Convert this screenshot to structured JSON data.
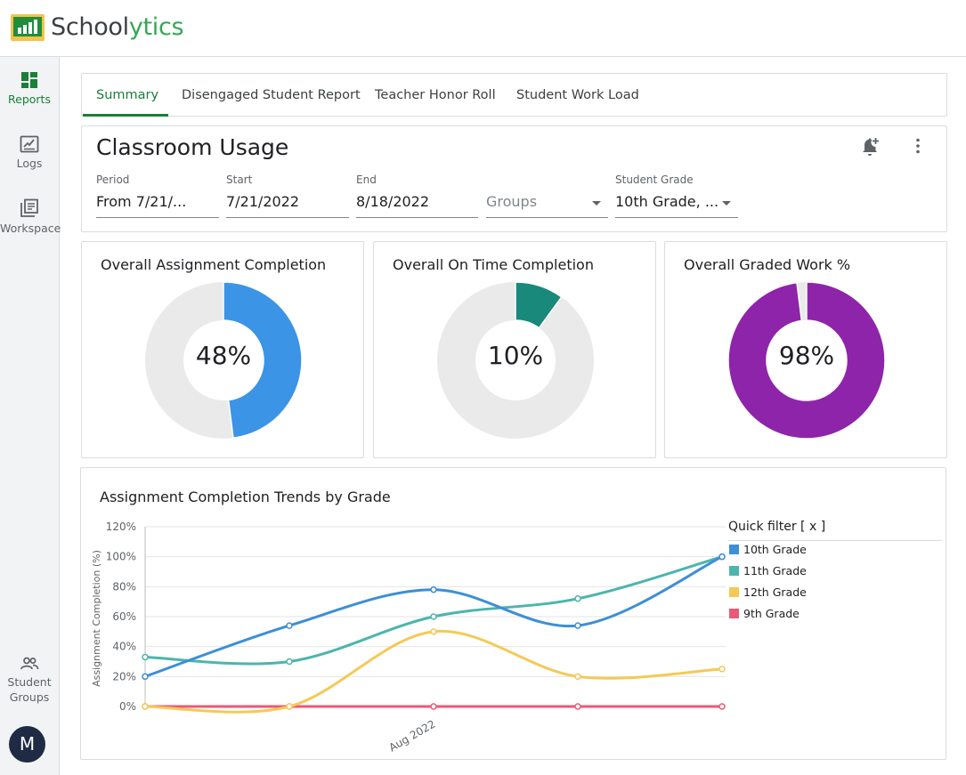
{
  "app": {
    "brand_main": "School",
    "brand_accent": "ytics"
  },
  "sidebar": {
    "items": [
      {
        "label": "Reports",
        "icon": "dashboard-icon"
      },
      {
        "label": "Logs",
        "icon": "edit-note-icon"
      },
      {
        "label": "Workspace",
        "icon": "library-books-icon"
      }
    ],
    "groups_line1": "Student",
    "groups_line2": "Groups",
    "avatar_initial": "M"
  },
  "tabs": [
    {
      "label": "Summary",
      "active": true
    },
    {
      "label": "Disengaged Student Report"
    },
    {
      "label": "Teacher Honor Roll"
    },
    {
      "label": "Student Work Load"
    }
  ],
  "usage": {
    "title": "Classroom Usage",
    "filters": {
      "period": {
        "label": "Period",
        "value": "From 7/21/..."
      },
      "start": {
        "label": "Start",
        "value": "7/21/2022"
      },
      "end": {
        "label": "End",
        "value": "8/18/2022"
      },
      "groups": {
        "label": "",
        "placeholder": "Groups"
      },
      "grade": {
        "label": "Student Grade",
        "value": "10th Grade, ..."
      }
    }
  },
  "donuts": [
    {
      "title": "Overall Assignment Completion",
      "value_text": "48%",
      "fraction": 0.48,
      "color": "#3b94e6"
    },
    {
      "title": "Overall On Time Completion",
      "value_text": "10%",
      "fraction": 0.1,
      "color": "#18897b"
    },
    {
      "title": "Overall Graded Work %",
      "value_text": "98%",
      "fraction": 0.98,
      "color": "#8e24aa"
    }
  ],
  "colors": {
    "donut_track": "#eaeaea",
    "accent": "#188038"
  },
  "chart_data": {
    "type": "line",
    "title": "Assignment Completion Trends by Grade",
    "ylabel": "Assignment Completion (%)",
    "xlabel": "",
    "ylim": [
      0,
      120
    ],
    "yticks": [
      "0%",
      "20%",
      "40%",
      "60%",
      "80%",
      "100%",
      "120%"
    ],
    "x_tick_label": "Aug 2022",
    "legend_title": "Quick filter [ x ]",
    "legend_position": "right",
    "series": [
      {
        "name": "10th Grade",
        "color": "#3d8fd6",
        "values": [
          20,
          54,
          78,
          54,
          100
        ]
      },
      {
        "name": "11th Grade",
        "color": "#4cb5ad",
        "values": [
          33,
          30,
          60,
          72,
          100
        ]
      },
      {
        "name": "12th Grade",
        "color": "#f5c955",
        "values": [
          0,
          0,
          50,
          20,
          25
        ]
      },
      {
        "name": "9th Grade",
        "color": "#e85a78",
        "values": [
          0,
          0,
          0,
          0,
          0
        ]
      }
    ]
  }
}
